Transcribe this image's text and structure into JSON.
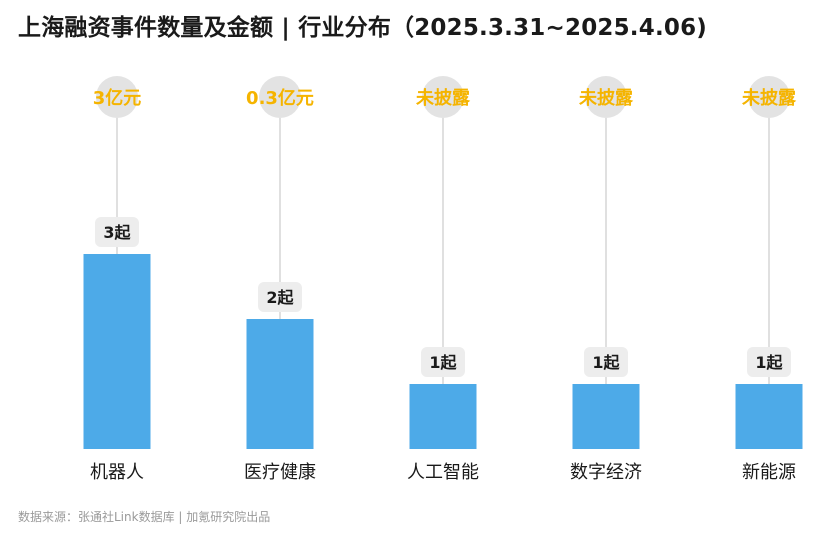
{
  "header": {
    "title": "上海融资事件数量及金额 | 行业分布（2025.3.31~2025.4.06)"
  },
  "chart_data": {
    "type": "bar",
    "categories": [
      "机器人",
      "医疗健康",
      "人工智能",
      "数字经济",
      "新能源"
    ],
    "values": [
      3,
      2,
      1,
      1,
      1
    ],
    "value_labels": [
      "3起",
      "2起",
      "1起",
      "1起",
      "1起"
    ],
    "amount_labels": [
      "3亿元",
      "0.3亿元",
      "未披露",
      "未披露",
      "未披露"
    ],
    "ylim": [
      0,
      3
    ],
    "grid": false,
    "colors": {
      "bar": "#4DAAE8",
      "amount_text": "#F5B400",
      "amount_circle": "#E3E3E3",
      "count_badge": "#EDEDED",
      "connector": "#E0E0E0"
    }
  },
  "footer": {
    "source": "数据来源：张通社Link数据库 | 加氪研究院出品"
  }
}
